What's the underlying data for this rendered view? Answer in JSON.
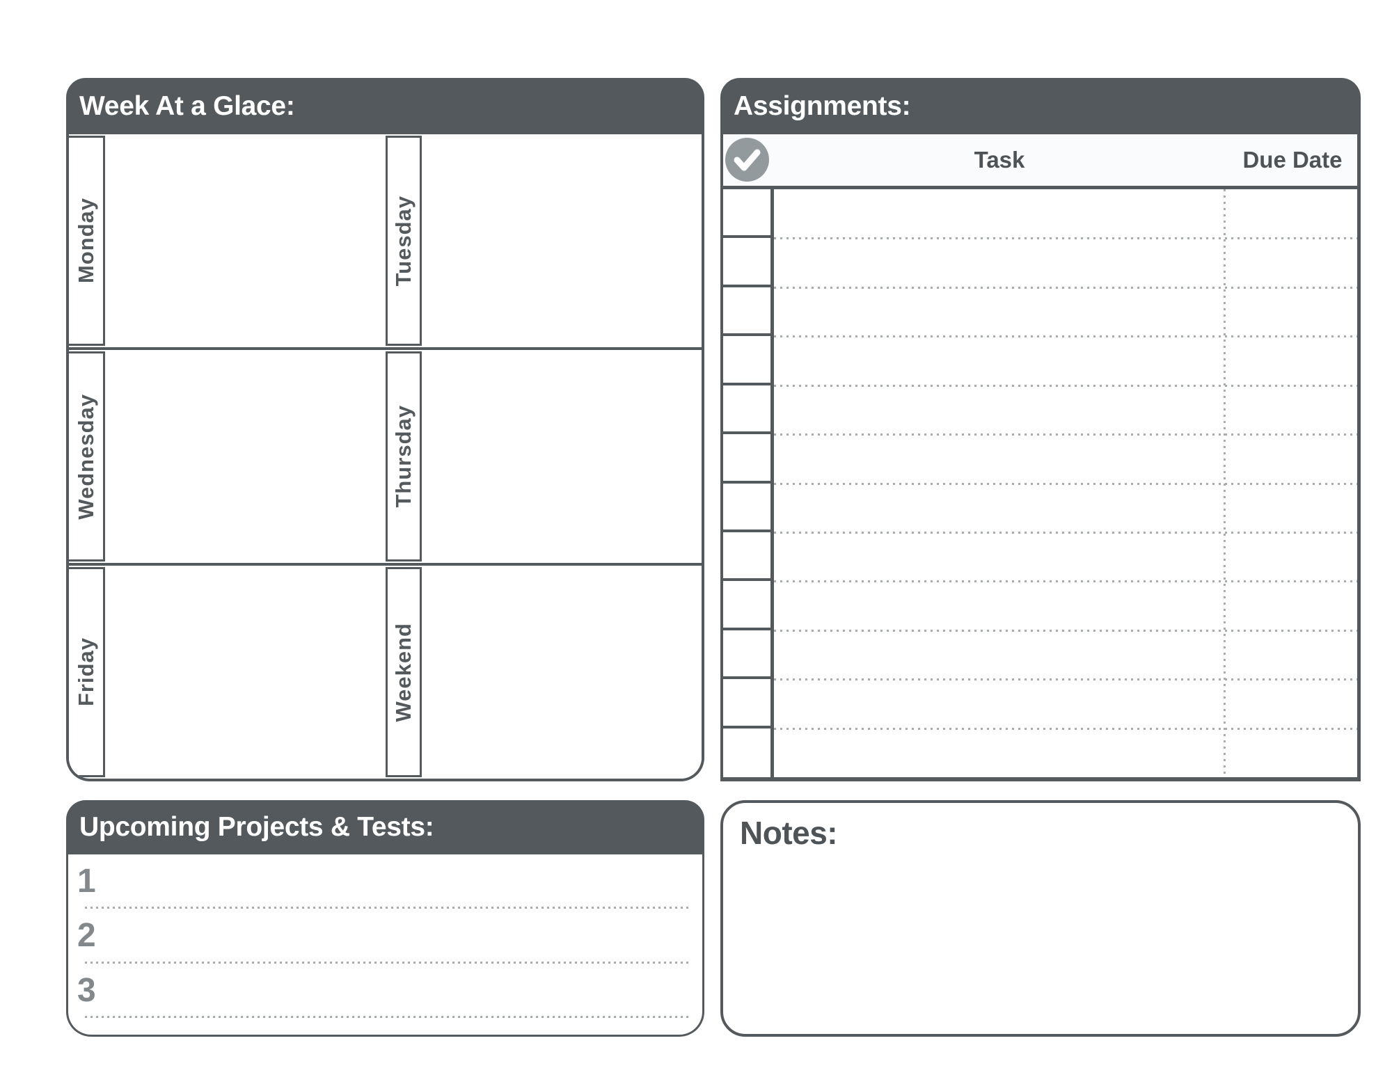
{
  "colors": {
    "header_bg": "#54595d",
    "line_dark": "#54595d",
    "text_dark": "#4d5357",
    "header_text": "#ffffff",
    "check_circle_gray": "#939a9e",
    "number_gray": "#82888c",
    "dotted_line_gray": "#a6abae",
    "background": "#ffffff"
  },
  "week": {
    "title": "Week At a Glace:",
    "day_rows": [
      [
        "Monday",
        "Tuesday"
      ],
      [
        "Wednesday",
        "Thursday"
      ],
      [
        "Friday",
        "Weekend"
      ]
    ]
  },
  "assignments": {
    "title": "Assignments:",
    "check_icon": "check-circle-icon",
    "columns": [
      "Task",
      "Due Date"
    ],
    "rows": [
      {
        "checked": false,
        "task": "",
        "due_date": ""
      },
      {
        "checked": false,
        "task": "",
        "due_date": ""
      },
      {
        "checked": false,
        "task": "",
        "due_date": ""
      },
      {
        "checked": false,
        "task": "",
        "due_date": ""
      },
      {
        "checked": false,
        "task": "",
        "due_date": ""
      },
      {
        "checked": false,
        "task": "",
        "due_date": ""
      },
      {
        "checked": false,
        "task": "",
        "due_date": ""
      },
      {
        "checked": false,
        "task": "",
        "due_date": ""
      },
      {
        "checked": false,
        "task": "",
        "due_date": ""
      },
      {
        "checked": false,
        "task": "",
        "due_date": ""
      },
      {
        "checked": false,
        "task": "",
        "due_date": ""
      },
      {
        "checked": false,
        "task": "",
        "due_date": ""
      }
    ]
  },
  "upcoming": {
    "title": "Upcoming Projects & Tests:",
    "items": [
      {
        "number": "1",
        "text": ""
      },
      {
        "number": "2",
        "text": ""
      },
      {
        "number": "3",
        "text": ""
      }
    ]
  },
  "notes": {
    "title": "Notes:",
    "content": ""
  }
}
